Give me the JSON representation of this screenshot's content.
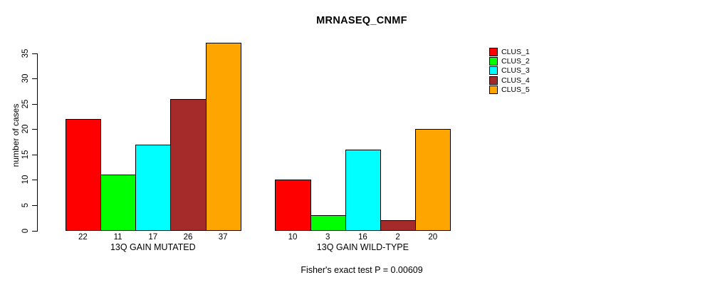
{
  "chart_data": {
    "type": "bar",
    "title": "MRNASEQ_CNMF",
    "ylabel": "number of cases",
    "xlabel": "",
    "annotation": "Fisher's exact test P = 0.00609",
    "ylim": [
      0,
      35
    ],
    "yticks": [
      0,
      5,
      10,
      15,
      20,
      25,
      30,
      35
    ],
    "grid": false,
    "legend_position": "right",
    "bar_border_color": "#000000",
    "background_color": "#ffffff",
    "groups": [
      {
        "label": "13Q GAIN MUTATED",
        "values": [
          22,
          11,
          17,
          26,
          37
        ]
      },
      {
        "label": "13Q GAIN WILD-TYPE",
        "values": [
          10,
          3,
          16,
          2,
          20
        ]
      }
    ],
    "series": [
      {
        "name": "CLUS_1",
        "color": "#FF0000"
      },
      {
        "name": "CLUS_2",
        "color": "#00FF00"
      },
      {
        "name": "CLUS_3",
        "color": "#00FFFF"
      },
      {
        "name": "CLUS_4",
        "color": "#A52A2A"
      },
      {
        "name": "CLUS_5",
        "color": "#FFA500"
      }
    ]
  }
}
